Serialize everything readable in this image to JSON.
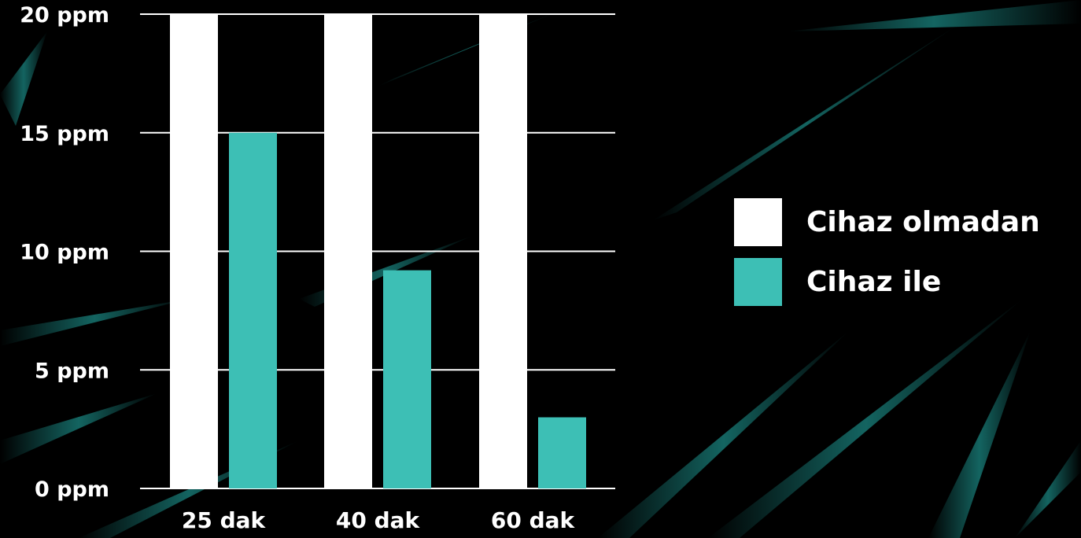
{
  "chart_data": {
    "type": "bar",
    "categories": [
      "25 dak",
      "40 dak",
      "60 dak"
    ],
    "series": [
      {
        "name": "Cihaz olmadan",
        "values": [
          20,
          20,
          20
        ],
        "color": "#ffffff"
      },
      {
        "name": "Cihaz ile",
        "values": [
          15,
          9.2,
          3
        ],
        "color": "#3dbfb5"
      }
    ],
    "yticks": [
      "0 ppm",
      "5 ppm",
      "10 ppm",
      "15 ppm",
      "20 ppm"
    ],
    "ylim": [
      0,
      20
    ],
    "grid": true,
    "legend_position": "right"
  },
  "colors": {
    "background": "#000000",
    "accent": "#3dbfb5",
    "grid": "#ffffff"
  }
}
